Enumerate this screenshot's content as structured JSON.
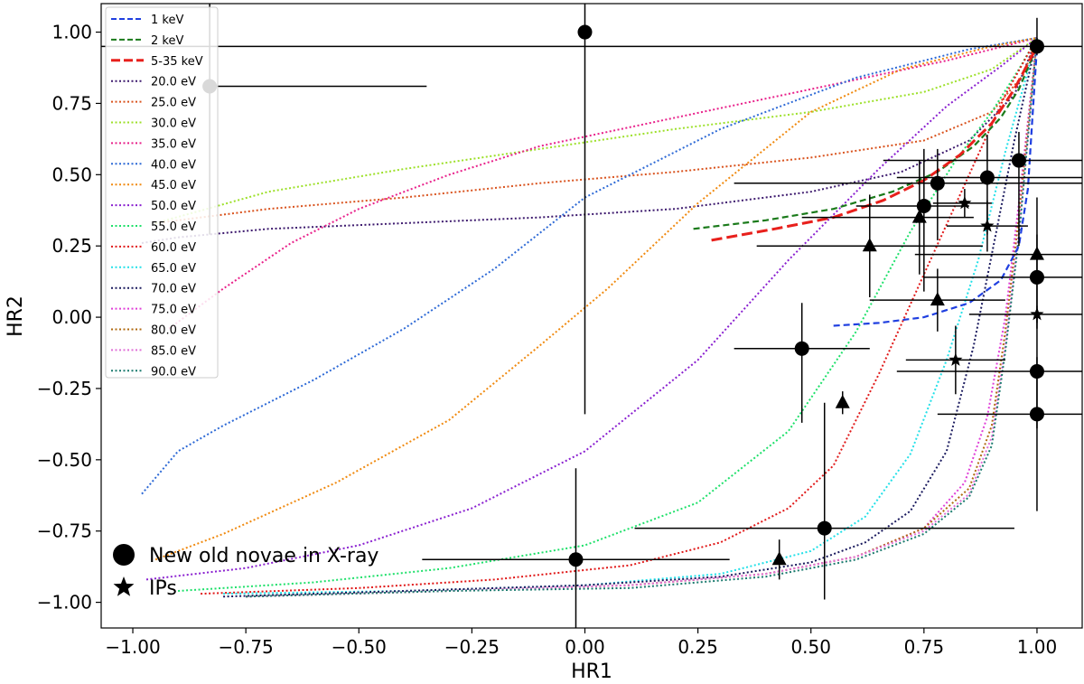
{
  "chart_data": {
    "type": "scatter",
    "xlabel": "HR1",
    "ylabel": "HR2",
    "xlim": [
      -1.07,
      1.1
    ],
    "ylim": [
      -1.09,
      1.1
    ],
    "x_ticks": [
      "−1.00",
      "−0.75",
      "−0.50",
      "−0.25",
      "0.00",
      "0.25",
      "0.50",
      "0.75",
      "1.00"
    ],
    "x_tick_values": [
      -1.0,
      -0.75,
      -0.5,
      -0.25,
      0.0,
      0.25,
      0.5,
      0.75,
      1.0
    ],
    "y_ticks": [
      "1.00",
      "0.75",
      "0.50",
      "0.25",
      "0.00",
      "−0.25",
      "−0.50",
      "−0.75",
      "−1.00"
    ],
    "y_tick_values": [
      1.0,
      0.75,
      0.5,
      0.25,
      0.0,
      -0.25,
      -0.5,
      -0.75,
      -1.0
    ],
    "grid": false,
    "dashed_series": [
      {
        "name": "1 keV",
        "color": "#1f3fe0",
        "x": [
          0.55,
          0.65,
          0.75,
          0.85,
          0.92,
          0.96,
          0.98,
          0.99,
          1.0
        ],
        "y": [
          -0.03,
          -0.02,
          0.0,
          0.05,
          0.13,
          0.25,
          0.45,
          0.7,
          0.95
        ]
      },
      {
        "name": "2 keV",
        "color": "#1a7a1a",
        "x": [
          0.24,
          0.4,
          0.55,
          0.68,
          0.78,
          0.86,
          0.92,
          0.96,
          1.0
        ],
        "y": [
          0.31,
          0.34,
          0.38,
          0.44,
          0.51,
          0.6,
          0.7,
          0.8,
          0.95
        ]
      },
      {
        "name": "5-35 keV",
        "color": "#e8201c",
        "x": [
          0.28,
          0.42,
          0.55,
          0.66,
          0.75,
          0.83,
          0.9,
          0.95,
          1.0
        ],
        "y": [
          0.27,
          0.31,
          0.35,
          0.41,
          0.48,
          0.57,
          0.68,
          0.8,
          0.95
        ]
      }
    ],
    "dotted_series": [
      {
        "name": "20.0 eV",
        "color": "#3d1a6e",
        "x": [
          -0.98,
          -0.9,
          -0.7,
          -0.4,
          -0.1,
          0.2,
          0.5,
          0.7,
          0.85,
          0.95,
          1.0
        ],
        "y": [
          0.26,
          0.28,
          0.31,
          0.33,
          0.35,
          0.38,
          0.44,
          0.51,
          0.62,
          0.78,
          0.98
        ]
      },
      {
        "name": "25.0 eV",
        "color": "#d9531e",
        "x": [
          -0.95,
          -0.7,
          -0.4,
          -0.1,
          0.2,
          0.5,
          0.75,
          0.9,
          0.97,
          1.0
        ],
        "y": [
          0.33,
          0.38,
          0.42,
          0.47,
          0.51,
          0.56,
          0.62,
          0.72,
          0.85,
          0.98
        ]
      },
      {
        "name": "30.0 eV",
        "color": "#9de02a",
        "x": [
          -0.95,
          -0.7,
          -0.4,
          -0.1,
          0.2,
          0.5,
          0.75,
          0.9,
          1.0
        ],
        "y": [
          0.33,
          0.44,
          0.52,
          0.59,
          0.66,
          0.72,
          0.79,
          0.87,
          0.98
        ]
      },
      {
        "name": "35.0 eV",
        "color": "#e8208a",
        "x": [
          -0.92,
          -0.8,
          -0.65,
          -0.5,
          -0.3,
          -0.1,
          0.2,
          0.5,
          0.8,
          1.0
        ],
        "y": [
          -0.04,
          0.1,
          0.26,
          0.38,
          0.5,
          0.6,
          0.7,
          0.8,
          0.9,
          0.98
        ]
      },
      {
        "name": "40.0 eV",
        "color": "#2e6ad6",
        "x": [
          -0.98,
          -0.9,
          -0.8,
          -0.6,
          -0.4,
          -0.2,
          0.0,
          0.3,
          0.6,
          0.85,
          1.0
        ],
        "y": [
          -0.62,
          -0.47,
          -0.38,
          -0.22,
          -0.04,
          0.17,
          0.42,
          0.66,
          0.84,
          0.94,
          0.98
        ]
      },
      {
        "name": "45.0 eV",
        "color": "#f08a10",
        "x": [
          -0.95,
          -0.8,
          -0.55,
          -0.3,
          -0.1,
          0.05,
          0.25,
          0.5,
          0.7,
          0.9,
          1.0
        ],
        "y": [
          -0.85,
          -0.76,
          -0.58,
          -0.36,
          -0.1,
          0.1,
          0.4,
          0.72,
          0.87,
          0.95,
          0.98
        ]
      },
      {
        "name": "50.0 eV",
        "color": "#8a20d0",
        "x": [
          -0.97,
          -0.75,
          -0.5,
          -0.25,
          0.0,
          0.25,
          0.45,
          0.65,
          0.8,
          0.92,
          1.0
        ],
        "y": [
          -0.92,
          -0.88,
          -0.8,
          -0.67,
          -0.47,
          -0.15,
          0.2,
          0.52,
          0.74,
          0.88,
          0.98
        ]
      },
      {
        "name": "55.0 eV",
        "color": "#1ee06a",
        "x": [
          -0.9,
          -0.6,
          -0.3,
          0.0,
          0.25,
          0.45,
          0.6,
          0.72,
          0.82,
          0.9,
          0.96,
          1.0
        ],
        "y": [
          -0.96,
          -0.93,
          -0.88,
          -0.8,
          -0.65,
          -0.4,
          -0.05,
          0.3,
          0.55,
          0.72,
          0.87,
          0.98
        ]
      },
      {
        "name": "60.0 eV",
        "color": "#e01818",
        "x": [
          -0.85,
          -0.5,
          -0.2,
          0.1,
          0.3,
          0.45,
          0.55,
          0.65,
          0.75,
          0.85,
          0.93,
          1.0
        ],
        "y": [
          -0.97,
          -0.95,
          -0.92,
          -0.87,
          -0.79,
          -0.67,
          -0.52,
          -0.2,
          0.15,
          0.5,
          0.78,
          0.98
        ]
      },
      {
        "name": "65.0 eV",
        "color": "#22e0e8",
        "x": [
          -0.8,
          -0.4,
          0.0,
          0.3,
          0.5,
          0.62,
          0.72,
          0.8,
          0.87,
          0.93,
          1.0
        ],
        "y": [
          -0.97,
          -0.96,
          -0.94,
          -0.9,
          -0.82,
          -0.7,
          -0.48,
          -0.15,
          0.2,
          0.58,
          0.98
        ]
      },
      {
        "name": "70.0 eV",
        "color": "#1a1a5e",
        "x": [
          -0.8,
          -0.4,
          0.0,
          0.3,
          0.5,
          0.62,
          0.72,
          0.8,
          0.86,
          0.91,
          0.95,
          1.0
        ],
        "y": [
          -0.98,
          -0.96,
          -0.94,
          -0.91,
          -0.86,
          -0.79,
          -0.68,
          -0.47,
          -0.1,
          0.3,
          0.62,
          0.98
        ]
      },
      {
        "name": "75.0 eV",
        "color": "#e040d8",
        "x": [
          -0.75,
          -0.3,
          0.1,
          0.4,
          0.6,
          0.75,
          0.84,
          0.89,
          0.93,
          0.96,
          1.0
        ],
        "y": [
          -0.98,
          -0.96,
          -0.94,
          -0.9,
          -0.84,
          -0.74,
          -0.58,
          -0.35,
          0.0,
          0.4,
          0.98
        ]
      },
      {
        "name": "80.0 eV",
        "color": "#b06a10",
        "x": [
          -0.75,
          -0.3,
          0.1,
          0.4,
          0.6,
          0.75,
          0.85,
          0.9,
          0.93,
          0.96,
          1.0
        ],
        "y": [
          -0.98,
          -0.96,
          -0.94,
          -0.9,
          -0.84,
          -0.74,
          -0.6,
          -0.38,
          -0.05,
          0.35,
          0.98
        ]
      },
      {
        "name": "85.0 eV",
        "color": "#e070d8",
        "x": [
          -0.75,
          -0.3,
          0.1,
          0.4,
          0.6,
          0.75,
          0.85,
          0.9,
          0.93,
          0.96,
          1.0
        ],
        "y": [
          -0.98,
          -0.96,
          -0.94,
          -0.9,
          -0.84,
          -0.75,
          -0.62,
          -0.42,
          -0.1,
          0.3,
          0.98
        ]
      },
      {
        "name": "90.0 eV",
        "color": "#1a7a6e",
        "x": [
          -0.75,
          -0.3,
          0.1,
          0.4,
          0.6,
          0.75,
          0.85,
          0.9,
          0.93,
          0.96,
          1.0
        ],
        "y": [
          -0.98,
          -0.96,
          -0.95,
          -0.91,
          -0.85,
          -0.76,
          -0.63,
          -0.45,
          -0.12,
          0.28,
          0.98
        ]
      }
    ],
    "points": [
      {
        "marker": "circle",
        "x": -0.83,
        "y": 0.81,
        "xerr": [
          0.0,
          0.48
        ],
        "yerr": [
          0.52,
          0.35
        ]
      },
      {
        "marker": "circle",
        "x": 0.0,
        "y": 1.0,
        "xerr": [
          0,
          0
        ],
        "yerr": [
          1.34,
          0.1
        ]
      },
      {
        "marker": "circle",
        "x": 1.0,
        "y": 0.95,
        "xerr": [
          2.1,
          0.1
        ],
        "yerr": [
          0.03,
          0.1
        ]
      },
      {
        "marker": "circle",
        "x": 0.96,
        "y": 0.55,
        "xerr": [
          0.3,
          0.14
        ],
        "yerr": [
          0.3,
          0.1
        ]
      },
      {
        "marker": "circle",
        "x": 0.89,
        "y": 0.49,
        "xerr": [
          0.2,
          0.21
        ],
        "yerr": [
          0.2,
          0.15
        ]
      },
      {
        "marker": "circle",
        "x": 0.78,
        "y": 0.47,
        "xerr": [
          0.45,
          0.32
        ],
        "yerr": [
          0.2,
          0.12
        ]
      },
      {
        "marker": "circle",
        "x": 0.75,
        "y": 0.39,
        "xerr": [
          0.15,
          0.1
        ],
        "yerr": [
          0.3,
          0.2
        ]
      },
      {
        "marker": "circle",
        "x": 1.0,
        "y": 0.14,
        "xerr": [
          0.25,
          0.1
        ],
        "yerr": [
          0.15,
          0.15
        ]
      },
      {
        "marker": "circle",
        "x": 0.48,
        "y": -0.11,
        "xerr": [
          0.15,
          0.15
        ],
        "yerr": [
          0.26,
          0.16
        ]
      },
      {
        "marker": "circle",
        "x": 1.0,
        "y": -0.19,
        "xerr": [
          0.31,
          0.1
        ],
        "yerr": [
          0.2,
          0.2
        ]
      },
      {
        "marker": "circle",
        "x": 1.0,
        "y": -0.34,
        "xerr": [
          0.22,
          0.1
        ],
        "yerr": [
          0.34,
          0.2
        ]
      },
      {
        "marker": "circle",
        "x": 0.53,
        "y": -0.74,
        "xerr": [
          0.42,
          0.42
        ],
        "yerr": [
          0.25,
          0.44
        ]
      },
      {
        "marker": "circle",
        "x": -0.02,
        "y": -0.85,
        "xerr": [
          0.34,
          0.34
        ],
        "yerr": [
          0.32,
          0.32
        ]
      },
      {
        "marker": "triangle",
        "x": 0.74,
        "y": 0.35,
        "xerr": [
          0.26,
          0.12
        ],
        "yerr": [
          0.2,
          0.2
        ]
      },
      {
        "marker": "triangle",
        "x": 0.63,
        "y": 0.25,
        "xerr": [
          0.25,
          0.25
        ],
        "yerr": [
          0.18,
          0.18
        ]
      },
      {
        "marker": "triangle",
        "x": 1.0,
        "y": 0.22,
        "xerr": [
          0.27,
          0.1
        ],
        "yerr": [
          0.26,
          0.2
        ]
      },
      {
        "marker": "triangle",
        "x": 0.78,
        "y": 0.06,
        "xerr": [
          0.15,
          0.15
        ],
        "yerr": [
          0.11,
          0.11
        ]
      },
      {
        "marker": "triangle",
        "x": 0.57,
        "y": -0.3,
        "xerr": [
          0,
          0
        ],
        "yerr": [
          0.04,
          0.04
        ]
      },
      {
        "marker": "triangle",
        "x": 0.43,
        "y": -0.85,
        "xerr": [
          0,
          0
        ],
        "yerr": [
          0.07,
          0.07
        ]
      },
      {
        "marker": "star",
        "x": 0.84,
        "y": 0.4,
        "xerr": [
          0.07,
          0.06
        ],
        "yerr": [
          0.05,
          0.05
        ]
      },
      {
        "marker": "star",
        "x": 0.89,
        "y": 0.32,
        "xerr": [
          0.09,
          0.09
        ],
        "yerr": [
          0.09,
          0.09
        ]
      },
      {
        "marker": "star",
        "x": 1.0,
        "y": 0.01,
        "xerr": [
          0.15,
          0.1
        ],
        "yerr": [
          0.03,
          0.03
        ]
      },
      {
        "marker": "star",
        "x": 0.82,
        "y": -0.15,
        "xerr": [
          0.11,
          0.11
        ],
        "yerr": [
          0.12,
          0.12
        ]
      }
    ],
    "legend_extra": [
      {
        "marker": "circle",
        "label": "New old novae in X-ray"
      },
      {
        "marker": "star",
        "label": "IPs"
      }
    ]
  }
}
